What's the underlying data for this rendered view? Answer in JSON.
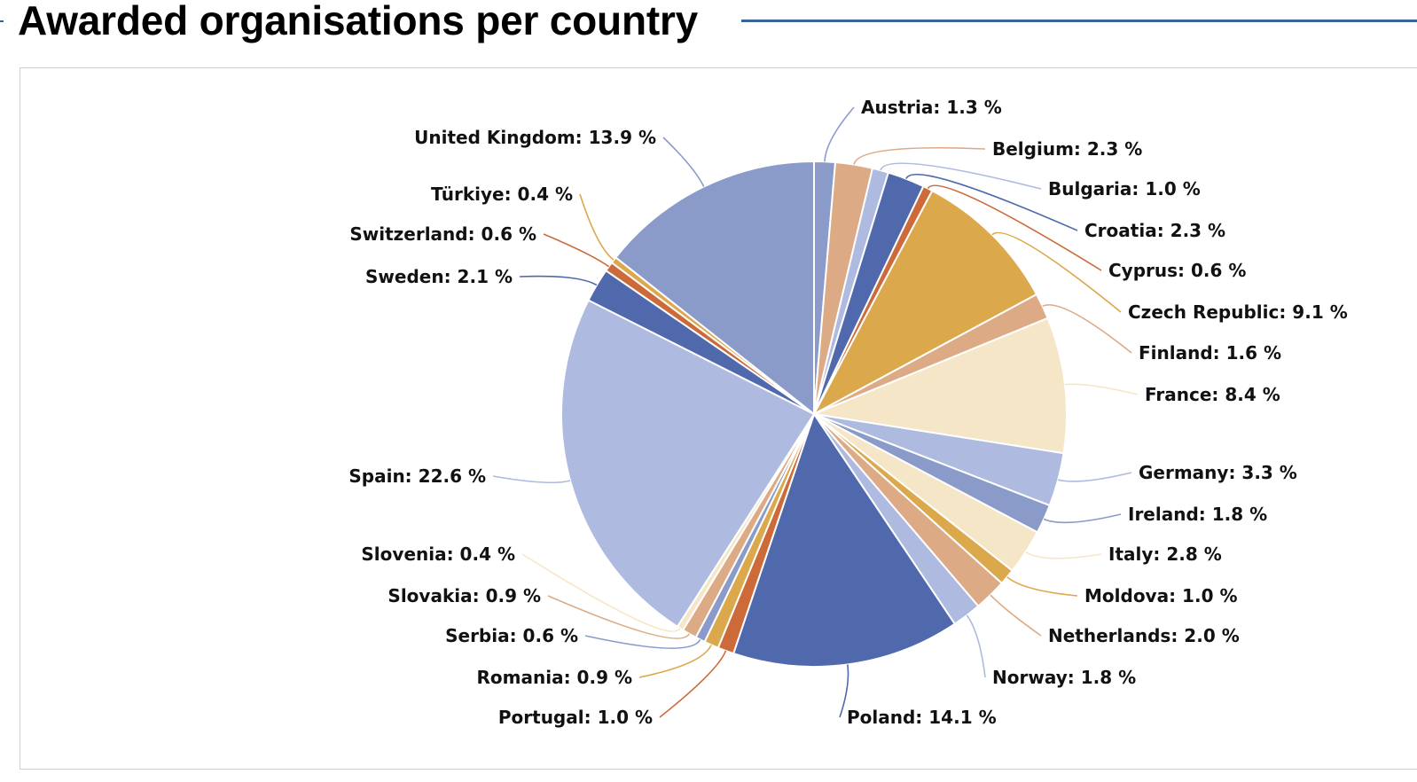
{
  "page": {
    "title": "Awarded organisations per country"
  },
  "chart_data": {
    "type": "pie",
    "title": "Awarded organisations per country",
    "unit": "%",
    "slices": [
      {
        "label": "Austria",
        "value": 1.3,
        "color": "#8a9bc9"
      },
      {
        "label": "Belgium",
        "value": 2.3,
        "color": "#ddaa86"
      },
      {
        "label": "Bulgaria",
        "value": 1.0,
        "color": "#aebadf"
      },
      {
        "label": "Croatia",
        "value": 2.3,
        "color": "#5069ad"
      },
      {
        "label": "Cyprus",
        "value": 0.6,
        "color": "#cc6a3a"
      },
      {
        "label": "Czech Republic",
        "value": 9.1,
        "color": "#dba84b"
      },
      {
        "label": "Finland",
        "value": 1.6,
        "color": "#ddaa86"
      },
      {
        "label": "France",
        "value": 8.4,
        "color": "#f6e6c8"
      },
      {
        "label": "Germany",
        "value": 3.3,
        "color": "#aebadf"
      },
      {
        "label": "Ireland",
        "value": 1.8,
        "color": "#8a9bc9"
      },
      {
        "label": "Italy",
        "value": 2.8,
        "color": "#f6e6c8"
      },
      {
        "label": "Moldova",
        "value": 1.0,
        "color": "#dba84b"
      },
      {
        "label": "Netherlands",
        "value": 2.0,
        "color": "#ddaa86"
      },
      {
        "label": "Norway",
        "value": 1.8,
        "color": "#aebadf"
      },
      {
        "label": "Poland",
        "value": 14.1,
        "color": "#5069ad"
      },
      {
        "label": "Portugal",
        "value": 1.0,
        "color": "#cc6a3a"
      },
      {
        "label": "Romania",
        "value": 0.9,
        "color": "#dba84b"
      },
      {
        "label": "Serbia",
        "value": 0.6,
        "color": "#8a9bc9"
      },
      {
        "label": "Slovakia",
        "value": 0.9,
        "color": "#ddaa86"
      },
      {
        "label": "Slovenia",
        "value": 0.4,
        "color": "#f6e6c8"
      },
      {
        "label": "Spain",
        "value": 22.6,
        "color": "#aebadf"
      },
      {
        "label": "Sweden",
        "value": 2.1,
        "color": "#5069ad"
      },
      {
        "label": "Switzerland",
        "value": 0.6,
        "color": "#cc6a3a"
      },
      {
        "label": "Türkiye",
        "value": 0.4,
        "color": "#dba84b"
      },
      {
        "label": "United Kingdom",
        "value": 13.9,
        "color": "#8a9bc9"
      }
    ]
  }
}
